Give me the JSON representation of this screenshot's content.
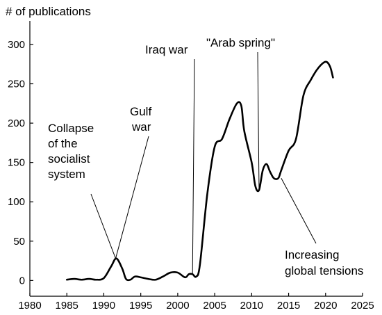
{
  "chart_data": {
    "type": "line",
    "title": "",
    "xlabel": "",
    "ylabel": "# of publications",
    "xlim": [
      1980,
      2025
    ],
    "ylim": [
      -20,
      330
    ],
    "xticks": [
      1980,
      1985,
      1990,
      1995,
      2000,
      2005,
      2010,
      2015,
      2020,
      2025
    ],
    "yticks": [
      0,
      50,
      100,
      150,
      200,
      250,
      300
    ],
    "grid": false,
    "series": [
      {
        "name": "",
        "color": "#000000",
        "x": [
          1985,
          1986,
          1987,
          1988,
          1989,
          1990,
          1991,
          1991.7,
          1992.5,
          1993,
          1993.6,
          1994.2,
          1995,
          1996,
          1997,
          1998,
          1999,
          2000,
          2001,
          2001.5,
          2002,
          2002.5,
          2003,
          2004,
          2005,
          2006,
          2007,
          2008,
          2008.6,
          2009,
          2010,
          2010.5,
          2011,
          2011.5,
          2012,
          2012.5,
          2013,
          2013.6,
          2014,
          2015,
          2016,
          2017,
          2018,
          2019,
          2020,
          2020.6,
          2021
        ],
        "y": [
          1,
          2,
          1,
          2,
          1,
          3,
          18,
          28,
          15,
          2,
          1,
          5,
          4,
          2,
          1,
          5,
          10,
          10,
          4,
          8,
          8,
          5,
          20,
          110,
          170,
          180,
          205,
          225,
          222,
          190,
          150,
          120,
          115,
          140,
          148,
          138,
          130,
          130,
          140,
          165,
          180,
          235,
          255,
          270,
          278,
          272,
          258
        ]
      }
    ],
    "annotations": [
      {
        "id": "collapse",
        "lines": [
          "Collapse",
          "of the",
          "socialist",
          "system"
        ],
        "x": 1991.6,
        "y": 28
      },
      {
        "id": "gulf",
        "lines": [
          "Gulf",
          "war"
        ],
        "x": 1991.6,
        "y": 28
      },
      {
        "id": "iraq",
        "lines": [
          "Iraq war"
        ],
        "x": 2002,
        "y": 7
      },
      {
        "id": "arab",
        "lines": [
          "\"Arab spring\""
        ],
        "x": 2011,
        "y": 115
      },
      {
        "id": "tensions",
        "lines": [
          "Increasing",
          "global tensions"
        ],
        "x": 2014,
        "y": 130
      }
    ]
  }
}
